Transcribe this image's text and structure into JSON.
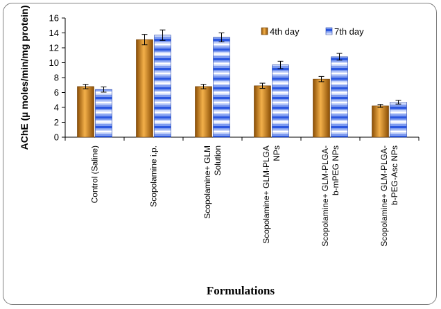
{
  "chart_data": {
    "type": "bar",
    "title": "",
    "xlabel": "Formulations",
    "ylabel": "AChE (µ moles/min/mg protein)",
    "ylim": [
      0,
      16
    ],
    "yticks": [
      0,
      2,
      4,
      6,
      8,
      10,
      12,
      14,
      16
    ],
    "grid": false,
    "legend_position": "top-right",
    "categories": [
      [
        "Control (Saline)"
      ],
      [
        "Scopolamine i.p."
      ],
      [
        "Scopolamine+ GLM",
        "Solution"
      ],
      [
        "Scopolamine+ GLM-PLGA",
        "NPs"
      ],
      [
        "Scopolamine+ GLM-PLGA-",
        "b-mPEG NPs"
      ],
      [
        "Scopolamine+ GLM-PLGA-",
        "b-PEG-Asc NPs"
      ]
    ],
    "series": [
      {
        "name": "4th day",
        "color": "#d08a1f",
        "values": [
          6.8,
          13.1,
          6.8,
          6.9,
          7.8,
          4.2
        ],
        "errors": [
          0.3,
          0.7,
          0.3,
          0.35,
          0.35,
          0.2
        ]
      },
      {
        "name": "7th day",
        "color": "#2f5fe0",
        "values": [
          6.4,
          13.7,
          13.4,
          9.7,
          10.8,
          4.7
        ],
        "errors": [
          0.35,
          0.7,
          0.6,
          0.5,
          0.45,
          0.25
        ]
      }
    ]
  }
}
